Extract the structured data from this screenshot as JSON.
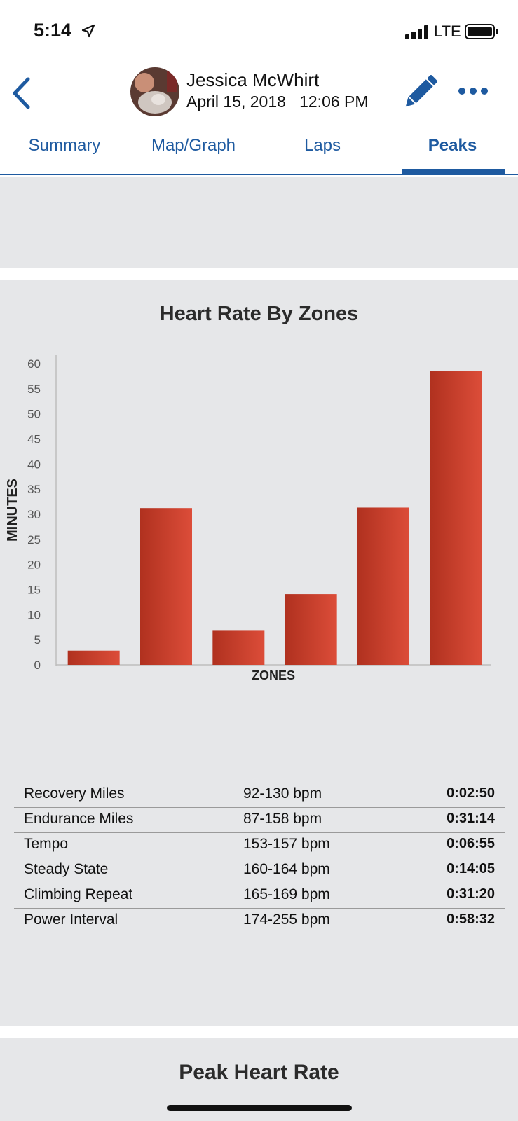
{
  "status_bar": {
    "time": "5:14",
    "network": "LTE"
  },
  "header": {
    "user_name": "Jessica McWhirt",
    "date": "April 15, 2018",
    "time": "12:06 PM",
    "datetime": "April 15, 2018   12:06 PM"
  },
  "tabs": [
    {
      "label": "Summary",
      "active": false
    },
    {
      "label": "Map/Graph",
      "active": false
    },
    {
      "label": "Laps",
      "active": false
    },
    {
      "label": "Peaks",
      "active": true
    }
  ],
  "colors": {
    "accent": "#1e5aa0",
    "bar_dark": "#b0311f",
    "bar_light": "#dc4d39",
    "panel_bg": "#e6e7e9"
  },
  "chart_data": {
    "type": "bar",
    "title": "Heart Rate By Zones",
    "xlabel": "ZONES",
    "ylabel": "MINUTES",
    "categories": [
      "Recovery Miles",
      "Endurance Miles",
      "Tempo",
      "Steady State",
      "Climbing Repeat",
      "Power Interval"
    ],
    "values": [
      2.83,
      31.23,
      6.92,
      14.08,
      31.33,
      58.53
    ],
    "ylim": [
      0,
      60
    ],
    "yticks": [
      0,
      5,
      10,
      15,
      20,
      25,
      30,
      35,
      40,
      45,
      50,
      55,
      60
    ],
    "grid": false
  },
  "zones": [
    {
      "name": "Recovery Miles",
      "range": "92-130 bpm",
      "time": "0:02:50"
    },
    {
      "name": "Endurance Miles",
      "range": "87-158 bpm",
      "time": "0:31:14"
    },
    {
      "name": "Tempo",
      "range": "153-157 bpm",
      "time": "0:06:55"
    },
    {
      "name": "Steady State",
      "range": "160-164 bpm",
      "time": "0:14:05"
    },
    {
      "name": "Climbing Repeat",
      "range": "165-169 bpm",
      "time": "0:31:20"
    },
    {
      "name": "Power Interval",
      "range": "174-255 bpm",
      "time": "0:58:32"
    }
  ],
  "peak_section": {
    "title": "Peak Heart Rate"
  }
}
